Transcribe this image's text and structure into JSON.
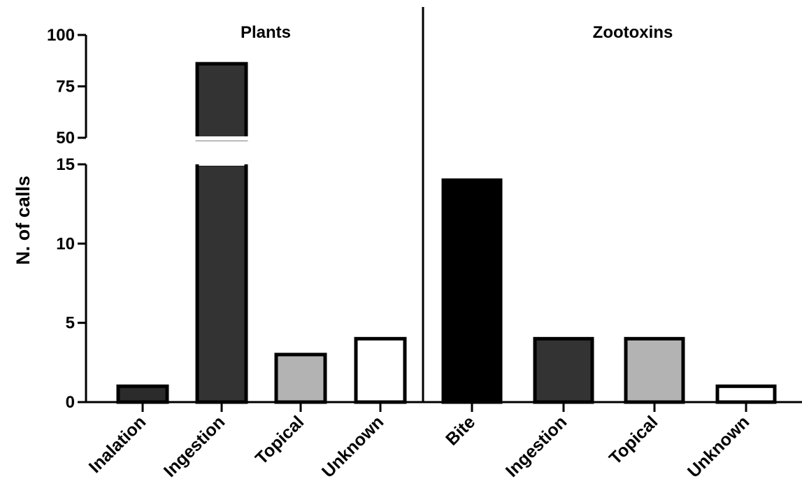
{
  "chart_data": {
    "type": "bar",
    "ylabel": "N. of calls",
    "y_axis": {
      "broken": true,
      "lower_segment": {
        "range": [
          0,
          15
        ],
        "ticks": [
          "0",
          "5",
          "10",
          "15"
        ]
      },
      "upper_segment": {
        "range": [
          50,
          100
        ],
        "ticks": [
          "50",
          "75",
          "100"
        ]
      }
    },
    "groups": [
      {
        "name": "Plants",
        "bars": [
          {
            "category": "Inalation",
            "value": 1,
            "color": "#2b2b2b"
          },
          {
            "category": "Ingestion",
            "value": 86,
            "color": "#333333"
          },
          {
            "category": "Topical",
            "value": 3,
            "color": "#b3b3b3"
          },
          {
            "category": "Unknown",
            "value": 4,
            "color": "#ffffff"
          }
        ]
      },
      {
        "name": "Zootoxins",
        "bars": [
          {
            "category": "Bite",
            "value": 14,
            "color": "#000000"
          },
          {
            "category": "Ingestion",
            "value": 4,
            "color": "#333333"
          },
          {
            "category": "Topical",
            "value": 4,
            "color": "#b3b3b3"
          },
          {
            "category": "Unknown",
            "value": 1,
            "color": "#ffffff"
          }
        ]
      }
    ],
    "grid": false,
    "legend": false
  }
}
